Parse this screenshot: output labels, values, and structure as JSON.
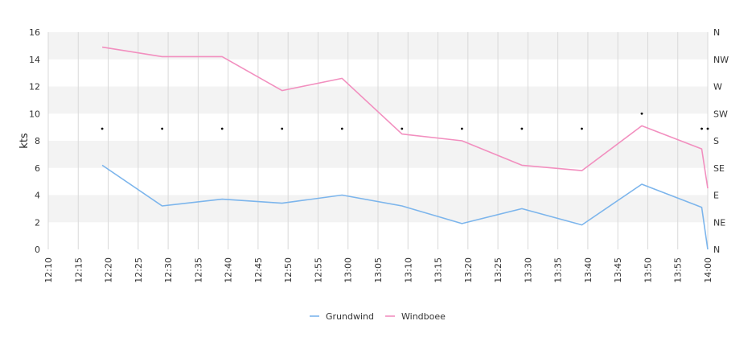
{
  "chart_data": {
    "type": "line",
    "ylabel": "kts",
    "ylim": [
      0,
      16
    ],
    "y_ticks": [
      0,
      2,
      4,
      6,
      8,
      10,
      12,
      14,
      16
    ],
    "right_axis_labels": [
      "N",
      "NE",
      "E",
      "SE",
      "S",
      "SW",
      "W",
      "NW",
      "N"
    ],
    "right_axis_ticks": [
      0,
      45,
      90,
      135,
      180,
      225,
      270,
      315,
      360
    ],
    "x_range": [
      "12:10",
      "14:00"
    ],
    "x_ticks": [
      "12:10",
      "12:15",
      "12:20",
      "12:25",
      "12:30",
      "12:35",
      "12:40",
      "12:45",
      "12:50",
      "12:55",
      "13:00",
      "13:05",
      "13:10",
      "13:15",
      "13:20",
      "13:25",
      "13:30",
      "13:35",
      "13:40",
      "13:45",
      "13:50",
      "13:55",
      "14:00"
    ],
    "grid": true,
    "legend_position": "bottom-center",
    "series": [
      {
        "name": "Grundwind",
        "color": "#7cb5ec",
        "points": [
          [
            "12:19",
            6.2
          ],
          [
            "12:29",
            3.2
          ],
          [
            "12:39",
            3.7
          ],
          [
            "12:49",
            3.4
          ],
          [
            "12:59",
            4.0
          ],
          [
            "13:09",
            3.2
          ],
          [
            "13:19",
            1.9
          ],
          [
            "13:29",
            3.0
          ],
          [
            "13:39",
            1.8
          ],
          [
            "13:49",
            4.8
          ],
          [
            "13:59",
            3.1
          ],
          [
            "14:00",
            0.0
          ]
        ]
      },
      {
        "name": "Windboee",
        "color": "#f28fbf",
        "points": [
          [
            "12:19",
            14.9
          ],
          [
            "12:29",
            14.2
          ],
          [
            "12:39",
            14.2
          ],
          [
            "12:49",
            11.7
          ],
          [
            "12:59",
            12.6
          ],
          [
            "13:09",
            8.5
          ],
          [
            "13:19",
            8.0
          ],
          [
            "13:29",
            6.2
          ],
          [
            "13:39",
            5.8
          ],
          [
            "13:49",
            9.1
          ],
          [
            "13:59",
            7.4
          ],
          [
            "14:00",
            4.5
          ]
        ]
      },
      {
        "name": "",
        "color": "#000000",
        "axis": "right",
        "style": "dots",
        "points": [
          [
            "12:19",
            200
          ],
          [
            "12:29",
            200
          ],
          [
            "12:39",
            200
          ],
          [
            "12:49",
            200
          ],
          [
            "12:59",
            200
          ],
          [
            "13:09",
            200
          ],
          [
            "13:19",
            200
          ],
          [
            "13:29",
            200
          ],
          [
            "13:39",
            200
          ],
          [
            "13:49",
            225
          ],
          [
            "13:59",
            200
          ],
          [
            "14:00",
            200
          ]
        ]
      }
    ]
  }
}
